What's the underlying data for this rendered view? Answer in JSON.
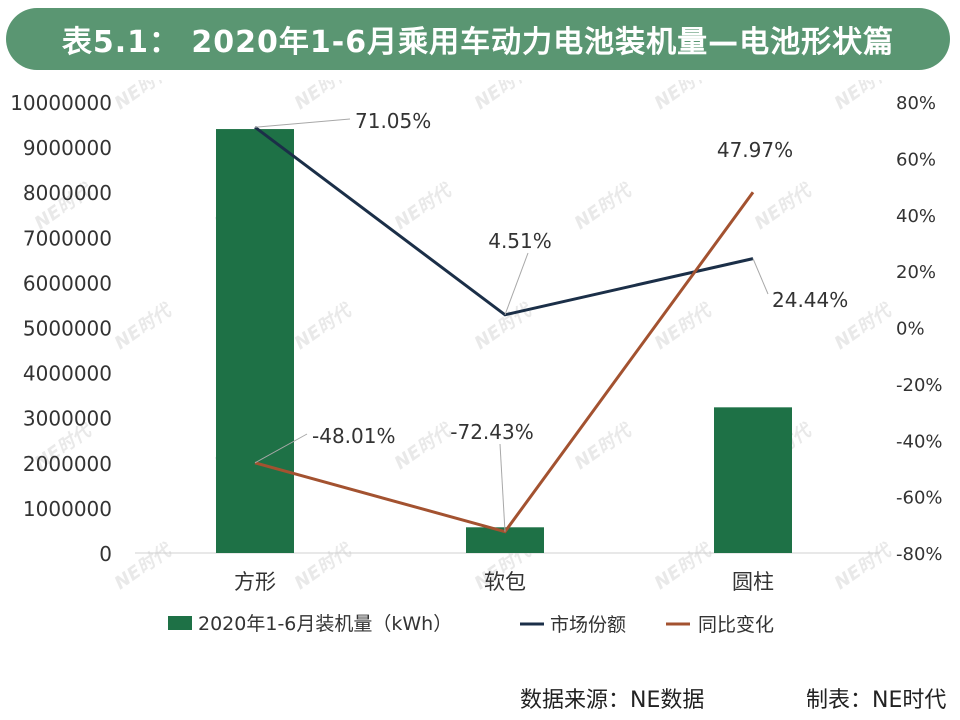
{
  "title": "表5.1： 2020年1-6月乘用车动力电池装机量—电池形状篇",
  "source_label": "数据来源：NE数据",
  "maker_label": "制表：NE时代",
  "watermark": "NE时代",
  "colors": {
    "bar": "#1e7146",
    "share": "#1b2f48",
    "yoy": "#a35230",
    "title_bg": "#5a9672"
  },
  "chart_data": {
    "type": "bar",
    "categories": [
      "方形",
      "软包",
      "圆柱"
    ],
    "y_left": {
      "min": 0,
      "max": 10000000,
      "step": 1000000,
      "ticks": [
        "0",
        "1000000",
        "2000000",
        "3000000",
        "4000000",
        "5000000",
        "6000000",
        "7000000",
        "8000000",
        "9000000",
        "10000000"
      ]
    },
    "y_right": {
      "min": -80,
      "max": 80,
      "step": 20,
      "ticks": [
        "-80%",
        "-60%",
        "-40%",
        "-20%",
        "0%",
        "20%",
        "40%",
        "60%",
        "80%"
      ]
    },
    "series": [
      {
        "name": "2020年1-6月装机量（kWh）",
        "type": "bar",
        "axis": "left",
        "values": [
          9400000,
          570000,
          3230000
        ]
      },
      {
        "name": "市场份额",
        "type": "line",
        "axis": "right",
        "values": [
          71.05,
          4.51,
          24.44
        ],
        "labels": [
          "71.05%",
          "4.51%",
          "24.44%"
        ]
      },
      {
        "name": "同比变化",
        "type": "line",
        "axis": "right",
        "values": [
          -48.01,
          -72.43,
          47.97
        ],
        "labels": [
          "-48.01%",
          "-72.43%",
          "47.97%"
        ]
      }
    ],
    "legend_position": "bottom",
    "grid": false
  }
}
